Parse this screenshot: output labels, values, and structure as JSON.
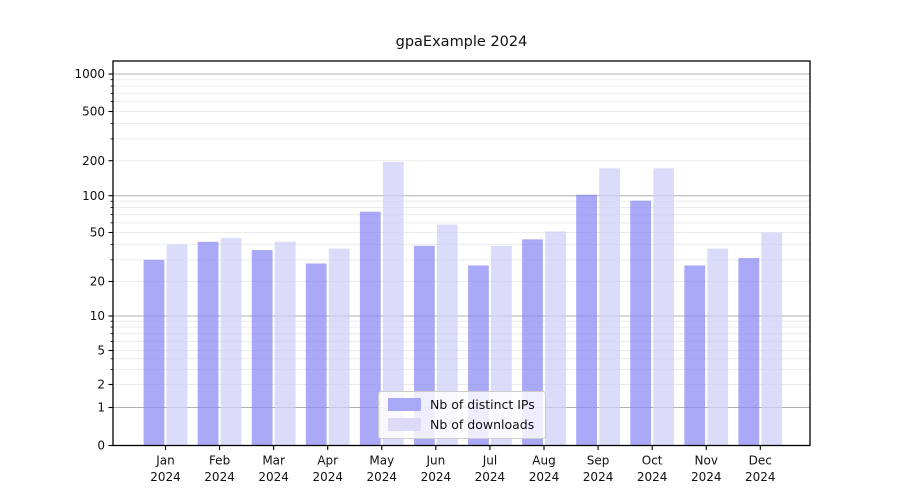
{
  "chart_data": {
    "type": "bar",
    "title": "gpaExample 2024",
    "categories": [
      "Jan",
      "Feb",
      "Mar",
      "Apr",
      "May",
      "Jun",
      "Jul",
      "Aug",
      "Sep",
      "Oct",
      "Nov",
      "Dec"
    ],
    "year_label": "2024",
    "series": [
      {
        "name": "Nb of distinct IPs",
        "color": "#a8a8f8",
        "values": [
          30,
          42,
          36,
          28,
          74,
          39,
          27,
          44,
          102,
          91,
          27,
          31
        ]
      },
      {
        "name": "Nb of downloads",
        "color": "#dbdbf8",
        "values": [
          40,
          45,
          42,
          37,
          195,
          58,
          39,
          51,
          172,
          172,
          37,
          50
        ]
      }
    ],
    "yscale": "symlog",
    "yticks": [
      0,
      1,
      2,
      5,
      10,
      20,
      50,
      100,
      200,
      500,
      1000
    ],
    "ylim": [
      0,
      1350
    ],
    "grid": true,
    "legend_position": "lower center",
    "major_grid_values": [
      1,
      10,
      100,
      1000
    ]
  }
}
